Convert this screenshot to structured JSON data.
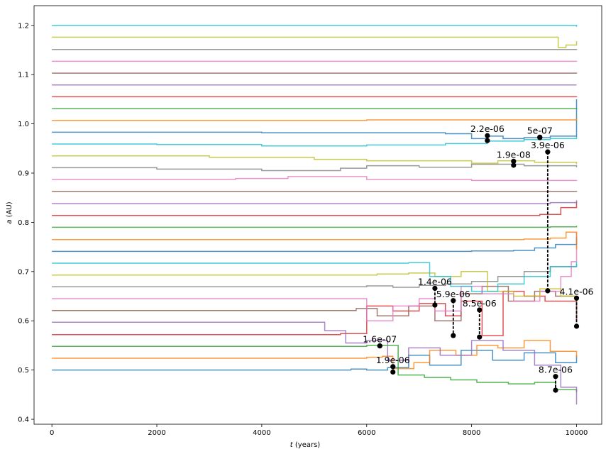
{
  "chart_data": {
    "type": "line",
    "title": "",
    "xlabel": "t (years)",
    "xlabel_italic": "t",
    "xlabel_rest": " (years)",
    "ylabel": "a (AU)",
    "ylabel_italic": "a",
    "ylabel_rest": " (AU)",
    "xlim": [
      -340,
      10480
    ],
    "ylim": [
      0.39,
      1.24
    ],
    "xticks": [
      0,
      2000,
      4000,
      6000,
      8000,
      10000
    ],
    "yticks": [
      0.4,
      0.5,
      0.6,
      0.7,
      0.8,
      0.9,
      1.0,
      1.1,
      1.2
    ],
    "grid": false,
    "legend": "none",
    "palette": [
      "#1f77b4",
      "#ff7f0e",
      "#2ca02c",
      "#d62728",
      "#9467bd",
      "#8c564b",
      "#e377c2",
      "#7f7f7f",
      "#bcbd22",
      "#17becf"
    ],
    "series": [
      {
        "color": "#1f77b4",
        "x": [
          0,
          5200,
          5700,
          6000,
          6400,
          6800,
          7200,
          7800,
          8400,
          9000,
          9600,
          10000
        ],
        "y": [
          0.5,
          0.5,
          0.502,
          0.5,
          0.505,
          0.53,
          0.51,
          0.54,
          0.52,
          0.535,
          0.515,
          0.53
        ]
      },
      {
        "color": "#ff7f0e",
        "x": [
          0,
          5500,
          6000,
          6300,
          6500,
          6900,
          7200,
          7700,
          8100,
          8500,
          9000,
          9500,
          10000
        ],
        "y": [
          0.524,
          0.524,
          0.526,
          0.528,
          0.503,
          0.515,
          0.54,
          0.53,
          0.55,
          0.545,
          0.56,
          0.538,
          0.525
        ]
      },
      {
        "color": "#2ca02c",
        "x": [
          0,
          5000,
          6000,
          6600,
          7100,
          7600,
          8100,
          8700,
          9200,
          9600,
          10000
        ],
        "y": [
          0.548,
          0.548,
          0.55,
          0.49,
          0.485,
          0.48,
          0.475,
          0.472,
          0.475,
          0.46,
          0.455
        ]
      },
      {
        "color": "#d62728",
        "x": [
          0,
          5000,
          5500,
          6000,
          6500,
          7000,
          7500,
          7800,
          8200,
          8600,
          9000,
          9400,
          10000
        ],
        "y": [
          0.572,
          0.572,
          0.574,
          0.63,
          0.62,
          0.635,
          0.61,
          0.64,
          0.57,
          0.66,
          0.65,
          0.64,
          0.6
        ]
      },
      {
        "color": "#9467bd",
        "x": [
          0,
          4500,
          5200,
          5600,
          6000,
          6400,
          6800,
          7400,
          8000,
          8600,
          9200,
          9700,
          10000
        ],
        "y": [
          0.597,
          0.597,
          0.58,
          0.555,
          0.56,
          0.52,
          0.545,
          0.53,
          0.56,
          0.54,
          0.51,
          0.465,
          0.43
        ]
      },
      {
        "color": "#8c564b",
        "x": [
          0,
          5200,
          5800,
          6200,
          6800,
          7300,
          7800,
          8200,
          8700,
          9200,
          9600,
          10000
        ],
        "y": [
          0.621,
          0.621,
          0.625,
          0.61,
          0.63,
          0.6,
          0.655,
          0.67,
          0.64,
          0.66,
          0.65,
          0.6
        ]
      },
      {
        "color": "#e377c2",
        "x": [
          0,
          5500,
          6000,
          6500,
          7000,
          7300,
          7800,
          8200,
          8800,
          9300,
          9700,
          9900,
          10000
        ],
        "y": [
          0.645,
          0.645,
          0.6,
          0.63,
          0.645,
          0.62,
          0.67,
          0.655,
          0.64,
          0.66,
          0.69,
          0.72,
          0.78
        ]
      },
      {
        "color": "#7f7f7f",
        "x": [
          0,
          5500,
          6000,
          6500,
          7000,
          7500,
          8000,
          8500,
          9000,
          9500,
          10000
        ],
        "y": [
          0.669,
          0.669,
          0.671,
          0.668,
          0.672,
          0.675,
          0.68,
          0.69,
          0.7,
          0.71,
          0.715
        ]
      },
      {
        "color": "#bcbd22",
        "x": [
          0,
          5500,
          6200,
          6800,
          7300,
          7800,
          8300,
          8800,
          9300,
          9700,
          10000
        ],
        "y": [
          0.693,
          0.693,
          0.695,
          0.697,
          0.69,
          0.7,
          0.66,
          0.65,
          0.665,
          0.65,
          0.64
        ]
      },
      {
        "color": "#17becf",
        "x": [
          0,
          6000,
          6800,
          7200,
          7600,
          8000,
          8500,
          9000,
          9500,
          10000
        ],
        "y": [
          0.717,
          0.717,
          0.718,
          0.69,
          0.67,
          0.66,
          0.675,
          0.69,
          0.71,
          0.72
        ]
      },
      {
        "color": "#1f77b4",
        "x": [
          0,
          7000,
          8000,
          8800,
          9200,
          9600,
          10000
        ],
        "y": [
          0.741,
          0.741,
          0.742,
          0.743,
          0.748,
          0.755,
          0.77
        ]
      },
      {
        "color": "#ff7f0e",
        "x": [
          0,
          8000,
          9000,
          9500,
          9800,
          10000
        ],
        "y": [
          0.765,
          0.765,
          0.766,
          0.768,
          0.78,
          0.745
        ]
      },
      {
        "color": "#2ca02c",
        "x": [
          0,
          8500,
          9500,
          10000
        ],
        "y": [
          0.79,
          0.79,
          0.791,
          0.793
        ]
      },
      {
        "color": "#d62728",
        "x": [
          0,
          8500,
          9300,
          9700,
          10000
        ],
        "y": [
          0.814,
          0.814,
          0.816,
          0.83,
          0.842
        ]
      },
      {
        "color": "#9467bd",
        "x": [
          0,
          8500,
          9500,
          10000
        ],
        "y": [
          0.838,
          0.838,
          0.84,
          0.845
        ]
      },
      {
        "color": "#8c564b",
        "x": [
          0,
          9000,
          10000
        ],
        "y": [
          0.863,
          0.863,
          0.864
        ]
      },
      {
        "color": "#e377c2",
        "x": [
          0,
          3500,
          4500,
          6000,
          8000,
          10000
        ],
        "y": [
          0.887,
          0.889,
          0.893,
          0.887,
          0.885,
          0.886
        ]
      },
      {
        "color": "#7f7f7f",
        "x": [
          0,
          2000,
          4000,
          5500,
          6000,
          7000,
          8000,
          9000,
          10000
        ],
        "y": [
          0.911,
          0.908,
          0.905,
          0.91,
          0.915,
          0.912,
          0.918,
          0.915,
          0.912
        ]
      },
      {
        "color": "#bcbd22",
        "x": [
          0,
          3000,
          5000,
          6000,
          7000,
          8000,
          8500,
          9200,
          10000
        ],
        "y": [
          0.935,
          0.932,
          0.928,
          0.925,
          0.925,
          0.92,
          0.925,
          0.922,
          0.918
        ]
      },
      {
        "color": "#17becf",
        "x": [
          0,
          2000,
          4000,
          6000,
          7500,
          8300,
          9000,
          9500,
          10000
        ],
        "y": [
          0.959,
          0.958,
          0.955,
          0.957,
          0.96,
          0.965,
          0.968,
          0.97,
          0.975
        ]
      },
      {
        "color": "#1f77b4",
        "x": [
          0,
          4000,
          7500,
          8000,
          8300,
          8600,
          9000,
          9500,
          9800,
          10000
        ],
        "y": [
          0.983,
          0.982,
          0.98,
          0.97,
          0.975,
          0.97,
          0.972,
          0.975,
          0.975,
          1.05
        ]
      },
      {
        "color": "#ff7f0e",
        "x": [
          0,
          6000,
          10000
        ],
        "y": [
          1.007,
          1.008,
          1.012
        ]
      },
      {
        "color": "#2ca02c",
        "x": [
          0,
          10000
        ],
        "y": [
          1.031,
          1.032
        ]
      },
      {
        "color": "#d62728",
        "x": [
          0,
          10000
        ],
        "y": [
          1.055,
          1.056
        ]
      },
      {
        "color": "#9467bd",
        "x": [
          0,
          10000
        ],
        "y": [
          1.079,
          1.079
        ]
      },
      {
        "color": "#8c564b",
        "x": [
          0,
          10000
        ],
        "y": [
          1.103,
          1.102
        ]
      },
      {
        "color": "#e377c2",
        "x": [
          0,
          10000
        ],
        "y": [
          1.127,
          1.126
        ]
      },
      {
        "color": "#7f7f7f",
        "x": [
          0,
          10000
        ],
        "y": [
          1.151,
          1.152
        ]
      },
      {
        "color": "#bcbd22",
        "x": [
          0,
          9600,
          9650,
          9800,
          10000
        ],
        "y": [
          1.176,
          1.176,
          1.155,
          1.16,
          1.168
        ]
      },
      {
        "color": "#17becf",
        "x": [
          0,
          10000
        ],
        "y": [
          1.2,
          1.197
        ]
      }
    ],
    "annotations": [
      {
        "label": "1.6e-07",
        "x": 6250,
        "y1": 0.549,
        "y2": 0.549
      },
      {
        "label": "1.9e-06",
        "x": 6500,
        "y1": 0.507,
        "y2": 0.496
      },
      {
        "label": "1.4e-06",
        "x": 7300,
        "y1": 0.666,
        "y2": 0.632
      },
      {
        "label": "5.9e-06",
        "x": 7650,
        "y1": 0.641,
        "y2": 0.57
      },
      {
        "label": "8.5e-06",
        "x": 8150,
        "y1": 0.622,
        "y2": 0.567
      },
      {
        "label": "2.2e-06",
        "x": 8300,
        "y1": 0.976,
        "y2": 0.966
      },
      {
        "label": "1.9e-08",
        "x": 8800,
        "y1": 0.924,
        "y2": 0.916
      },
      {
        "label": "5e-07",
        "x": 9300,
        "y1": 0.973,
        "y2": 0.972
      },
      {
        "label": "3.9e-06",
        "x": 9450,
        "y1": 0.943,
        "y2": 0.661
      },
      {
        "label": "8.7e-06",
        "x": 9600,
        "y1": 0.487,
        "y2": 0.459
      },
      {
        "label": "4.1e-06",
        "x": 10000,
        "y1": 0.646,
        "y2": 0.589
      }
    ]
  }
}
